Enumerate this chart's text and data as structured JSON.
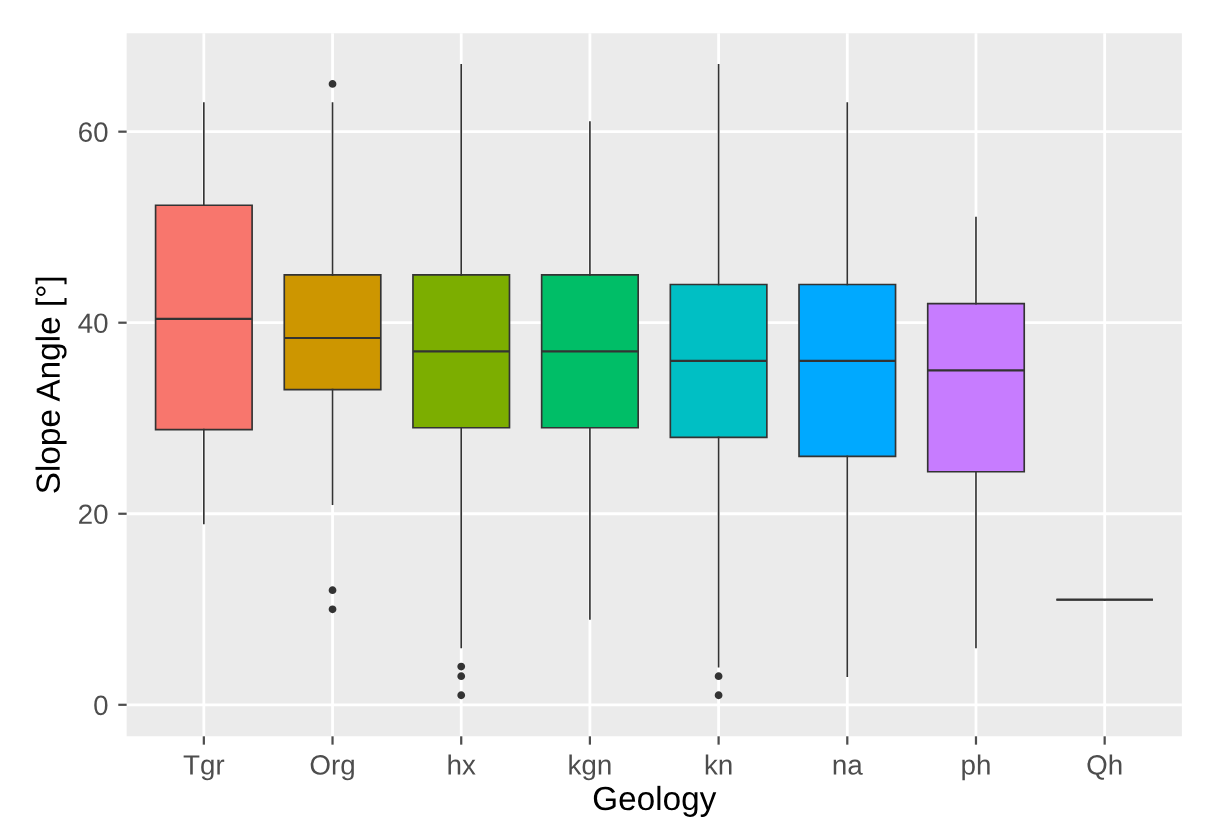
{
  "chart_data": {
    "type": "box",
    "xlabel": "Geology",
    "ylabel": "Slope Angle [°]",
    "categories": [
      "Tgr",
      "Org",
      "hx",
      "kgn",
      "kn",
      "na",
      "ph",
      "Qh"
    ],
    "boxes": [
      {
        "low": 19,
        "q1": 28.8,
        "median": 40.4,
        "q3": 52.3,
        "high": 63
      },
      {
        "low": 21,
        "q1": 33,
        "median": 38.4,
        "q3": 45,
        "high": 63,
        "outliers": [
          65,
          12,
          10
        ]
      },
      {
        "low": 6,
        "q1": 29,
        "median": 37,
        "q3": 45,
        "high": 67,
        "outliers": [
          4,
          3,
          1
        ]
      },
      {
        "low": 9,
        "q1": 29,
        "median": 37,
        "q3": 45,
        "high": 61
      },
      {
        "low": 4,
        "q1": 28,
        "median": 36,
        "q3": 44,
        "high": 67,
        "outliers": [
          3,
          1
        ]
      },
      {
        "low": 3,
        "q1": 26,
        "median": 36,
        "q3": 44,
        "high": 63
      },
      {
        "low": 6,
        "q1": 24.4,
        "median": 35,
        "q3": 42,
        "high": 51
      },
      {
        "low": 11,
        "q1": 11,
        "median": 11,
        "q3": 11,
        "high": 11
      }
    ],
    "colors": [
      "#f8766d",
      "#cd9600",
      "#7cae00",
      "#00be67",
      "#00bfc4",
      "#00a9ff",
      "#c77cff",
      "#333333"
    ],
    "ylim": [
      -3.3,
      70.3
    ],
    "yticks": [
      0,
      20,
      40,
      60
    ],
    "grid": true
  }
}
